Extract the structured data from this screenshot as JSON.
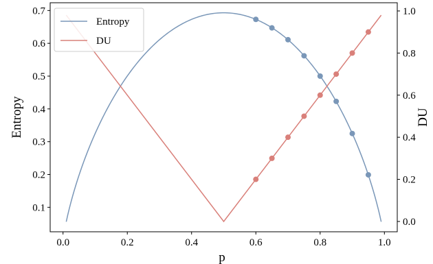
{
  "chart_data": {
    "type": "line",
    "xlabel": "p",
    "ylabel_left": "Entropy",
    "ylabel_right": "DU",
    "xlim": [
      -0.04,
      1.04
    ],
    "ylim_left": [
      0.0254,
      0.7237
    ],
    "ylim_right": [
      -0.049,
      1.039
    ],
    "x_ticks": [
      0.0,
      0.2,
      0.4,
      0.6,
      0.8,
      1.0
    ],
    "x_tick_labels": [
      "0.0",
      "0.2",
      "0.4",
      "0.6",
      "0.8",
      "1.0"
    ],
    "y_left_ticks": [
      0.1,
      0.2,
      0.3,
      0.4,
      0.5,
      0.6,
      0.7
    ],
    "y_left_tick_labels": [
      "0.1",
      "0.2",
      "0.3",
      "0.4",
      "0.5",
      "0.6",
      "0.7"
    ],
    "y_right_ticks": [
      0.0,
      0.2,
      0.4,
      0.6,
      0.8,
      1.0
    ],
    "y_right_tick_labels": [
      "0.0",
      "0.2",
      "0.4",
      "0.6",
      "0.8",
      "1.0"
    ],
    "grid": false,
    "legend_placement": "top-left",
    "series": [
      {
        "name": "Entropy",
        "axis": "left",
        "color": "#7a97b8",
        "function": "binary_entropy_nats",
        "x_range": [
          0.01,
          0.99
        ],
        "markers": {
          "x": [
            0.6,
            0.65,
            0.7,
            0.75,
            0.8,
            0.85,
            0.9,
            0.95
          ],
          "y": [
            0.673,
            0.647,
            0.611,
            0.562,
            0.5,
            0.423,
            0.325,
            0.199
          ]
        }
      },
      {
        "name": "DU",
        "axis": "right",
        "color": "#d9807a",
        "x": [
          0.01,
          0.5,
          0.99
        ],
        "y": [
          0.98,
          0.0,
          0.98
        ],
        "markers": {
          "x": [
            0.6,
            0.65,
            0.7,
            0.75,
            0.8,
            0.85,
            0.9,
            0.95
          ],
          "y": [
            0.2,
            0.3,
            0.4,
            0.5,
            0.6,
            0.7,
            0.8,
            0.9
          ]
        }
      }
    ]
  }
}
